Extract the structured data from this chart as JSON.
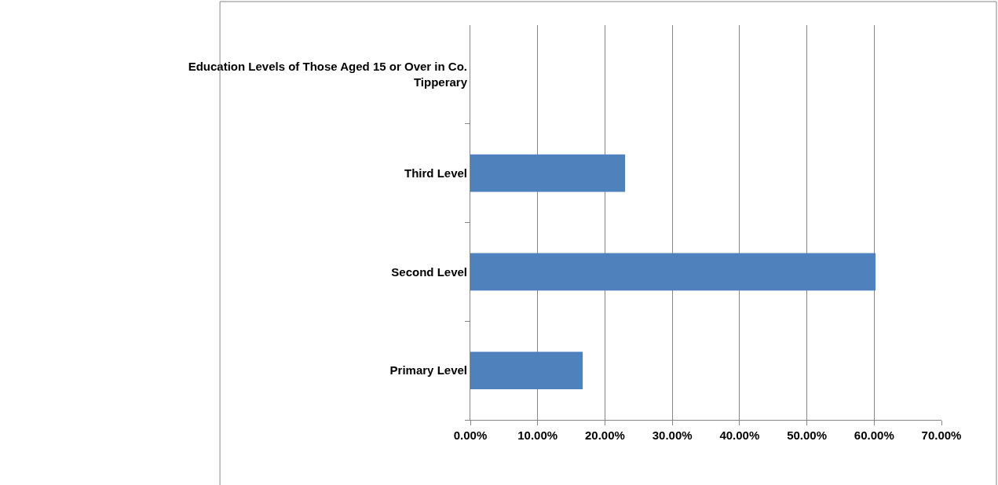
{
  "chart_data": {
    "type": "bar",
    "orientation": "horizontal",
    "categories": [
      "Education Levels of Those Aged 15 or Over in Co. Tipperary",
      "Third Level",
      "Second Level",
      "Primary Level"
    ],
    "values": [
      null,
      23.0,
      60.2,
      16.7
    ],
    "color": "#4f81bd",
    "xlim": [
      0,
      70
    ],
    "xticks": [
      {
        "value": 0,
        "label": "0.00%"
      },
      {
        "value": 10,
        "label": "10.00%"
      },
      {
        "value": 20,
        "label": "20.00%"
      },
      {
        "value": 30,
        "label": "30.00%"
      },
      {
        "value": 40,
        "label": "40.00%"
      },
      {
        "value": 50,
        "label": "50.00%"
      },
      {
        "value": 60,
        "label": "60.00%"
      },
      {
        "value": 70,
        "label": "70.00%"
      }
    ],
    "grid": "x",
    "legend": false
  }
}
